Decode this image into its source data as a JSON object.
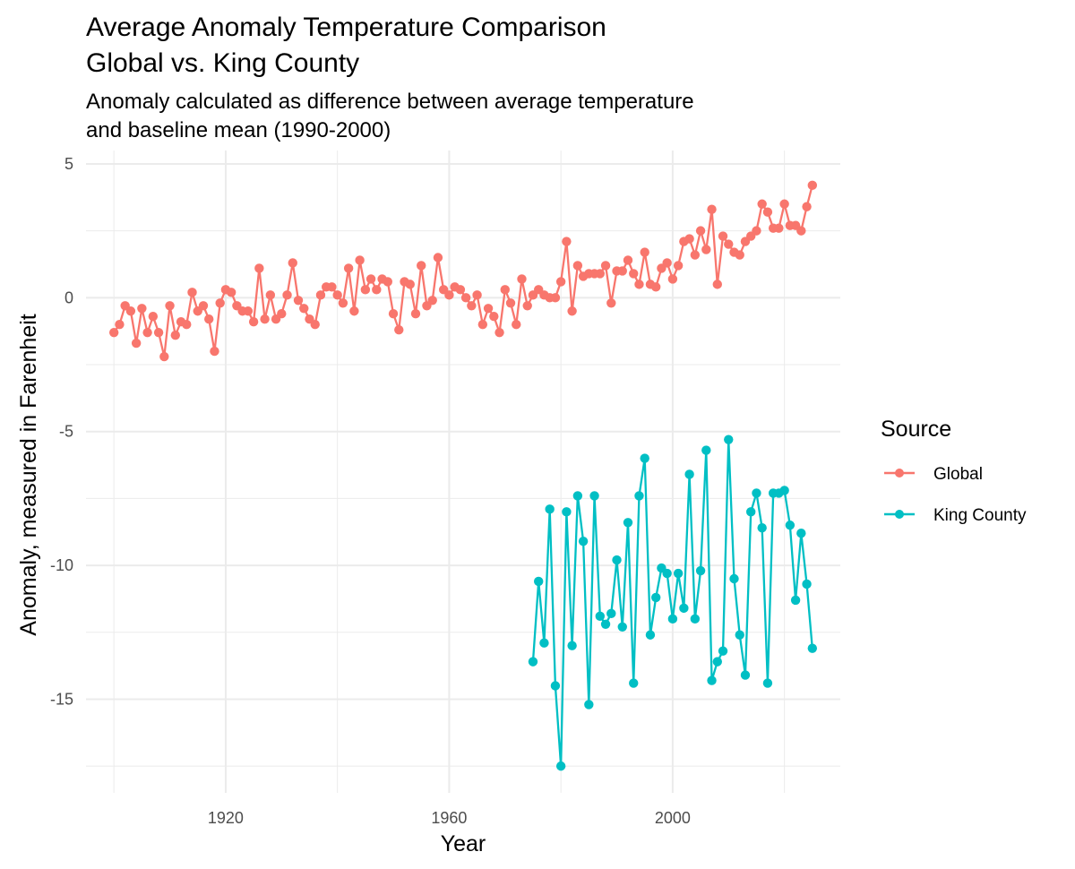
{
  "chart_data": {
    "type": "line",
    "title_line1": "Average Anomaly Temperature Comparison",
    "title_line2": "Global vs. King County",
    "subtitle_line1": "Anomaly calculated as difference between average temperature",
    "subtitle_line2": "and baseline mean (1990-2000)",
    "xlabel": "Year",
    "ylabel": "Anomaly, measured in Farenheit",
    "xlim": [
      1895,
      2030
    ],
    "ylim": [
      -18.5,
      5.5
    ],
    "x_ticks": [
      1920,
      1960,
      2000
    ],
    "y_ticks": [
      5,
      0,
      -5,
      -10,
      -15
    ],
    "y_tick_labels": [
      "5",
      "0",
      "-5",
      "-10",
      "-15"
    ],
    "grid": true,
    "legend": {
      "title": "Source",
      "position": "right"
    },
    "series": [
      {
        "name": "Global",
        "color": "#F8766D",
        "x": [
          1900,
          1901,
          1902,
          1903,
          1904,
          1905,
          1906,
          1907,
          1908,
          1909,
          1910,
          1911,
          1912,
          1913,
          1914,
          1915,
          1916,
          1917,
          1918,
          1919,
          1920,
          1921,
          1922,
          1923,
          1924,
          1925,
          1926,
          1927,
          1928,
          1929,
          1930,
          1931,
          1932,
          1933,
          1934,
          1935,
          1936,
          1937,
          1938,
          1939,
          1940,
          1941,
          1942,
          1943,
          1944,
          1945,
          1946,
          1947,
          1948,
          1949,
          1950,
          1951,
          1952,
          1953,
          1954,
          1955,
          1956,
          1957,
          1958,
          1959,
          1960,
          1961,
          1962,
          1963,
          1964,
          1965,
          1966,
          1967,
          1968,
          1969,
          1970,
          1971,
          1972,
          1973,
          1974,
          1975,
          1976,
          1977,
          1978,
          1979,
          1980,
          1981,
          1982,
          1983,
          1984,
          1985,
          1986,
          1987,
          1988,
          1989,
          1990,
          1991,
          1992,
          1993,
          1994,
          1995,
          1996,
          1997,
          1998,
          1999,
          2000,
          2001,
          2002,
          2003,
          2004,
          2005,
          2006,
          2007,
          2008,
          2009,
          2010,
          2011,
          2012,
          2013,
          2014,
          2015,
          2016,
          2017,
          2018,
          2019,
          2020,
          2021,
          2022,
          2023,
          2024,
          2025
        ],
        "values": [
          -1.3,
          -1.0,
          -0.3,
          -0.5,
          -1.7,
          -0.4,
          -1.3,
          -0.7,
          -1.3,
          -2.2,
          -0.3,
          -1.4,
          -0.9,
          -1.0,
          0.2,
          -0.5,
          -0.3,
          -0.8,
          -2.0,
          -0.2,
          0.3,
          0.2,
          -0.3,
          -0.5,
          -0.5,
          -0.9,
          1.1,
          -0.8,
          0.1,
          -0.8,
          -0.6,
          0.1,
          1.3,
          -0.1,
          -0.4,
          -0.8,
          -1.0,
          0.1,
          0.4,
          0.4,
          0.1,
          -0.2,
          1.1,
          -0.5,
          1.4,
          0.3,
          0.7,
          0.3,
          0.7,
          0.6,
          -0.6,
          -1.2,
          0.6,
          0.5,
          -0.6,
          1.2,
          -0.3,
          -0.1,
          1.5,
          0.3,
          0.1,
          0.4,
          0.3,
          0.0,
          -0.3,
          0.1,
          -1.0,
          -0.4,
          -0.7,
          -1.3,
          0.3,
          -0.2,
          -1.0,
          0.7,
          -0.3,
          0.1,
          0.3,
          0.1,
          0.0,
          0.0,
          0.6,
          2.1,
          -0.5,
          1.2,
          0.8,
          0.9,
          0.9,
          0.9,
          1.2,
          -0.2,
          1.0,
          1.0,
          1.4,
          0.9,
          0.5,
          1.7,
          0.5,
          0.4,
          1.1,
          1.3,
          0.7,
          1.2,
          2.1,
          2.2,
          1.6,
          2.5,
          1.8,
          3.3,
          0.5,
          2.3,
          2.0,
          1.7,
          1.6,
          2.1,
          2.3,
          2.5,
          3.5,
          3.2,
          2.6,
          2.6,
          3.5,
          2.7,
          2.7,
          2.5,
          3.4,
          4.2
        ]
      },
      {
        "name": "King County",
        "color": "#00BFC4",
        "x": [
          1975,
          1976,
          1977,
          1978,
          1979,
          1980,
          1981,
          1982,
          1983,
          1984,
          1985,
          1986,
          1987,
          1988,
          1989,
          1990,
          1991,
          1992,
          1993,
          1994,
          1995,
          1996,
          1997,
          1998,
          1999,
          2000,
          2001,
          2002,
          2003,
          2004,
          2005,
          2006,
          2007,
          2008,
          2009,
          2010,
          2011,
          2012,
          2013,
          2014,
          2015,
          2016,
          2017,
          2018,
          2019,
          2020,
          2021,
          2022,
          2023,
          2024,
          2025
        ],
        "values": [
          -13.6,
          -10.6,
          -12.9,
          -7.9,
          -14.5,
          -17.5,
          -8.0,
          -13.0,
          -7.4,
          -9.1,
          -15.2,
          -7.4,
          -11.9,
          -12.2,
          -11.8,
          -9.8,
          -12.3,
          -8.4,
          -14.4,
          -7.4,
          -6.0,
          -12.6,
          -11.2,
          -10.1,
          -10.3,
          -12.0,
          -10.3,
          -11.6,
          -6.6,
          -12.0,
          -10.2,
          -5.7,
          -14.3,
          -13.6,
          -13.2,
          -5.3,
          -10.5,
          -12.6,
          -14.1,
          -8.0,
          -7.3,
          -8.6,
          -14.4,
          -7.3,
          -7.3,
          -7.2,
          -8.5,
          -11.3,
          -8.8,
          -10.7,
          -13.1
        ]
      }
    ]
  }
}
